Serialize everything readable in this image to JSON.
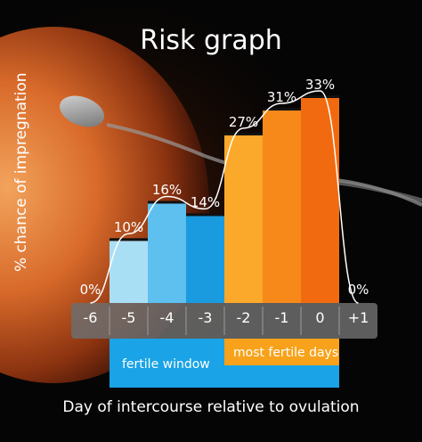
{
  "title": "Risk graph",
  "chart_data": {
    "type": "bar",
    "title": "Risk graph",
    "xlabel": "Day of intercourse relative to ovulation",
    "ylabel": "% chance of impregnation",
    "categories": [
      "-6",
      "-5",
      "-4",
      "-3",
      "-2",
      "-1",
      "0",
      "+1"
    ],
    "values": [
      0,
      10,
      16,
      14,
      27,
      31,
      33,
      0
    ],
    "value_labels": [
      "0%",
      "10%",
      "16%",
      "14%",
      "27%",
      "31%",
      "33%",
      "0%"
    ],
    "ylim": [
      0,
      35
    ],
    "grid": false,
    "legend": false,
    "bands": [
      {
        "label": "fertile window",
        "from": "-5",
        "to": "0",
        "color": "#1aa3e6"
      },
      {
        "label": "most fertile days",
        "from": "-2",
        "to": "0",
        "color": "#f7a21a"
      }
    ],
    "bar_colors": [
      "#1a2a3a",
      "#a9dff5",
      "#5ec0ee",
      "#1a9be0",
      "#fba92a",
      "#f7891a",
      "#f26a0f",
      "#1a2a3a"
    ]
  }
}
